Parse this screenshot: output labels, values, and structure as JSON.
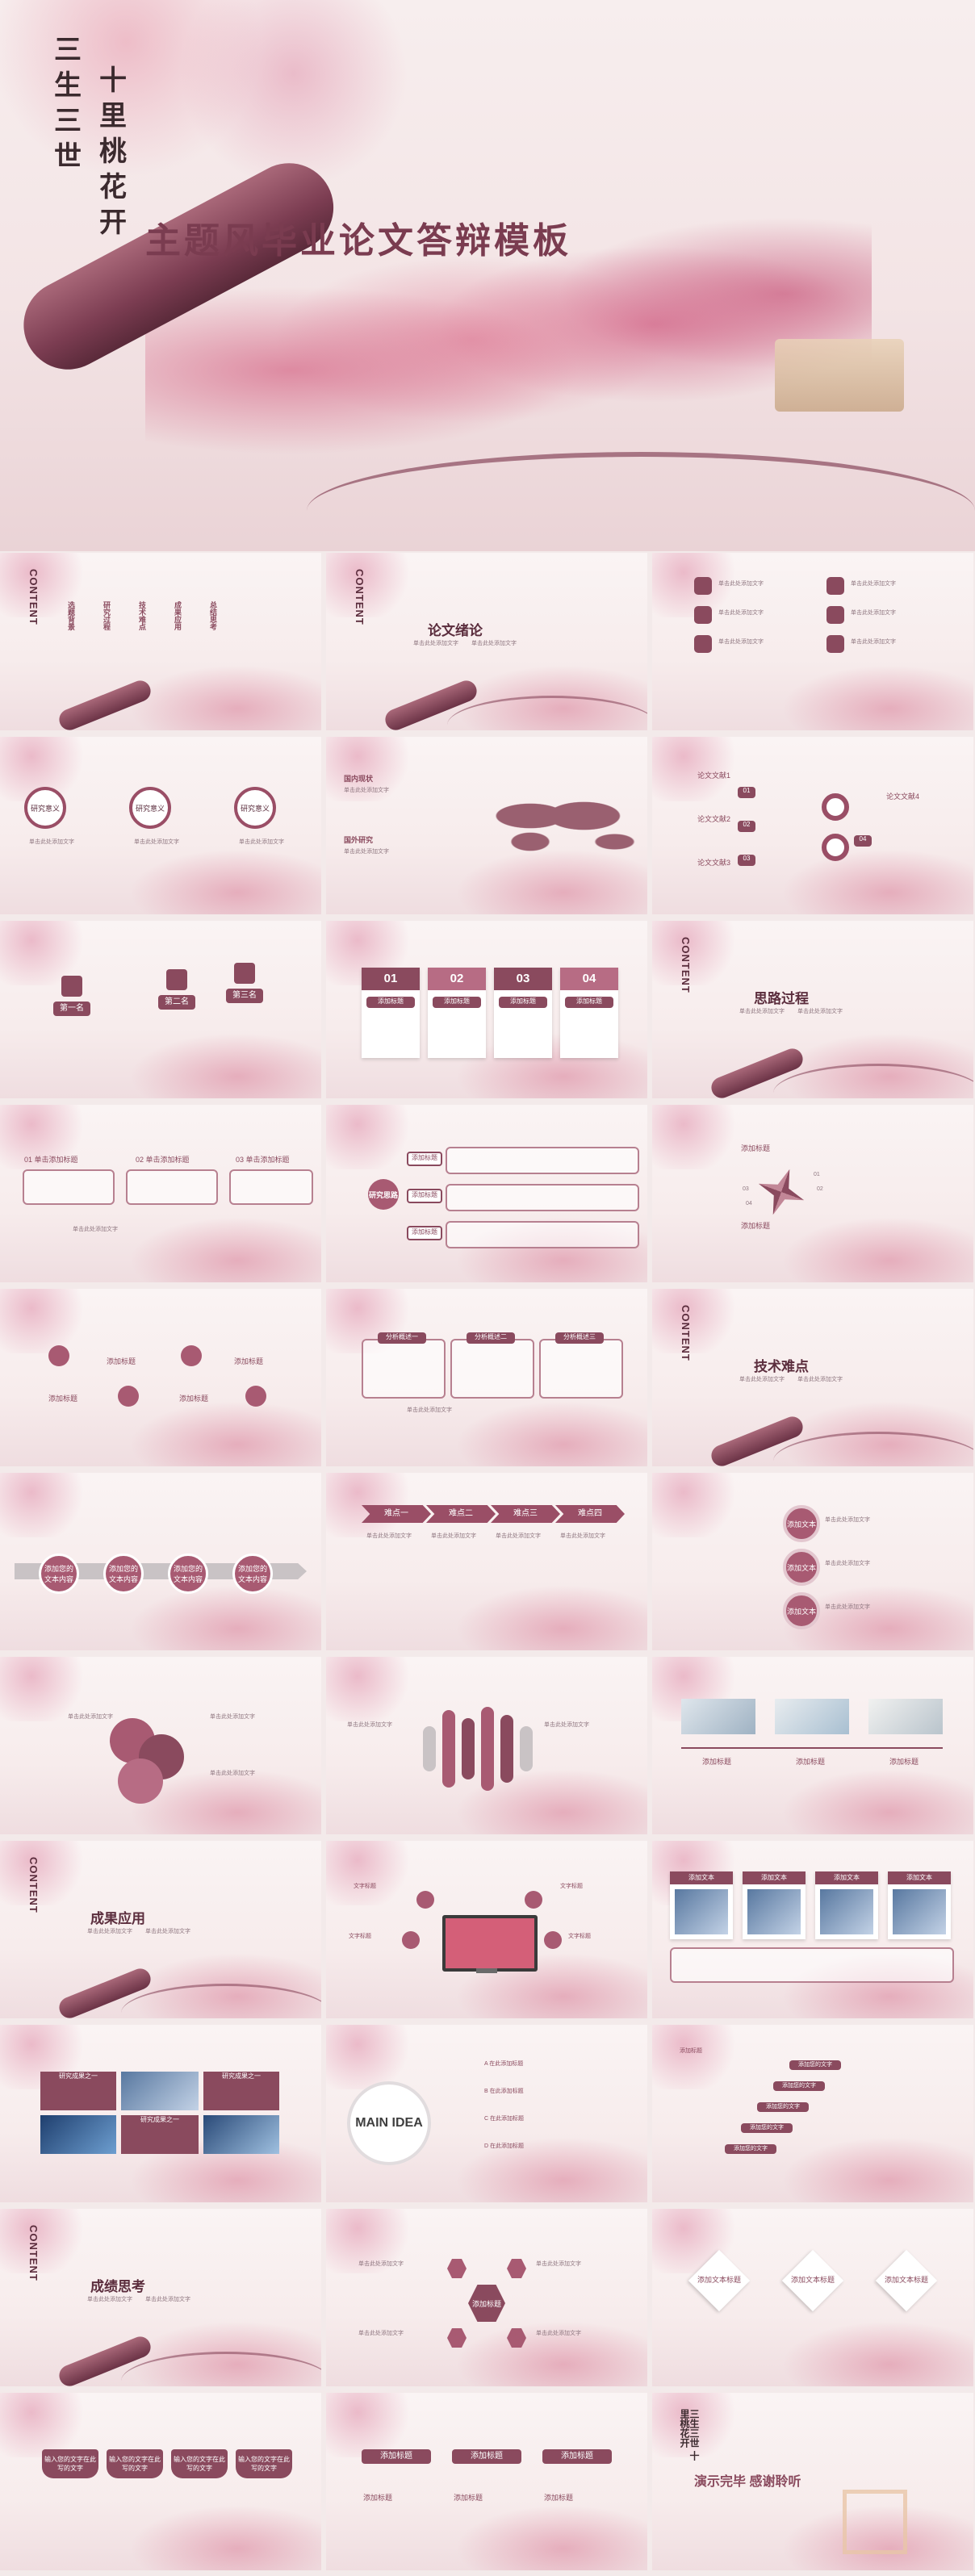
{
  "hero": {
    "poem_col1": "三生三世",
    "poem_col2": "十里桃花开",
    "title": "主题风毕业论文答辩模板"
  },
  "common": {
    "content_label": "CONTENT",
    "small_text": "单击此处添加文字",
    "add_title": "添加标题",
    "add_text": "添加文本"
  },
  "slides": {
    "toc": {
      "items": [
        "选题背景",
        "研究过程",
        "技术难点",
        "成果应用",
        "总结思考"
      ]
    },
    "s2": {
      "title": "论文绪论"
    },
    "s4": {
      "labels": [
        "研究意义",
        "研究意义",
        "研究意义"
      ]
    },
    "s5": {
      "heads": [
        "国内现状",
        "国外研究"
      ]
    },
    "s6": {
      "labels": [
        "论文文献1",
        "论文文献2",
        "论文文献3",
        "论文文献4"
      ],
      "nums": [
        "01",
        "02",
        "03",
        "04"
      ]
    },
    "s7": {
      "labels": [
        "第一名",
        "第二名",
        "第三名"
      ]
    },
    "s8": {
      "nums": [
        "01",
        "02",
        "03",
        "04"
      ]
    },
    "s9": {
      "title": "思路过程"
    },
    "s10": {
      "heads": [
        "01 单击添加标题",
        "02 单击添加标题",
        "03 单击添加标题"
      ]
    },
    "s11": {
      "center": "研究思路",
      "tags": [
        "添加标题",
        "添加标题",
        "添加标题"
      ]
    },
    "s12": {
      "nums": [
        "01",
        "02",
        "03",
        "04"
      ]
    },
    "s14": {
      "tabs": [
        "分析概述一",
        "分析概述二",
        "分析概述三"
      ]
    },
    "s15": {
      "title": "技术难点"
    },
    "s16": {
      "circles": [
        "添加您的文本内容",
        "添加您的文本内容",
        "添加您的文本内容",
        "添加您的文本内容"
      ]
    },
    "s17": {
      "chevrons": [
        "难点一",
        "难点二",
        "难点三",
        "难点四"
      ]
    },
    "s18": {
      "rings": [
        "添加文本",
        "添加文本",
        "添加文本"
      ]
    },
    "s22": {
      "title": "成果应用"
    },
    "s23": {
      "tags": [
        "文字标题",
        "文字标题",
        "文字标题",
        "文字标题"
      ]
    },
    "s24": {
      "tabs": [
        "添加文本",
        "添加文本",
        "添加文本",
        "添加文本"
      ]
    },
    "s25": {
      "cards": [
        "研究成果之一",
        "研究成果之一",
        "研究成果之一",
        "研究成果之一"
      ]
    },
    "s26": {
      "bulb": "MAIN IDEA",
      "items": [
        "A 在此添加标题",
        "B 在此添加标题",
        "C 在此添加标题",
        "D 在此添加标题"
      ]
    },
    "s27": {
      "steps": [
        "添加您的文字",
        "添加您的文字",
        "添加您的文字",
        "添加您的文字",
        "添加您的文字"
      ]
    },
    "s28": {
      "title": "成绩思考"
    },
    "s29": {
      "center": "添加标题"
    },
    "s30": {
      "diamonds": [
        "添加文本标题",
        "添加文本标题",
        "添加文本标题"
      ]
    },
    "s31": {
      "tabs": [
        "输入您的文字在此写的文字",
        "输入您的文字在此写的文字",
        "输入您的文字在此写的文字",
        "输入您的文字在此写的文字"
      ]
    },
    "s32": {
      "tabs": [
        "添加标题",
        "添加标题",
        "添加标题"
      ]
    },
    "s33": {
      "thanks": "演示完毕 感谢聆听",
      "poem": "三生三世 十里桃花开"
    }
  },
  "colors": {
    "accent": "#8a4a5e",
    "light_accent": "#a85a72",
    "bg": "#f7ecec"
  }
}
